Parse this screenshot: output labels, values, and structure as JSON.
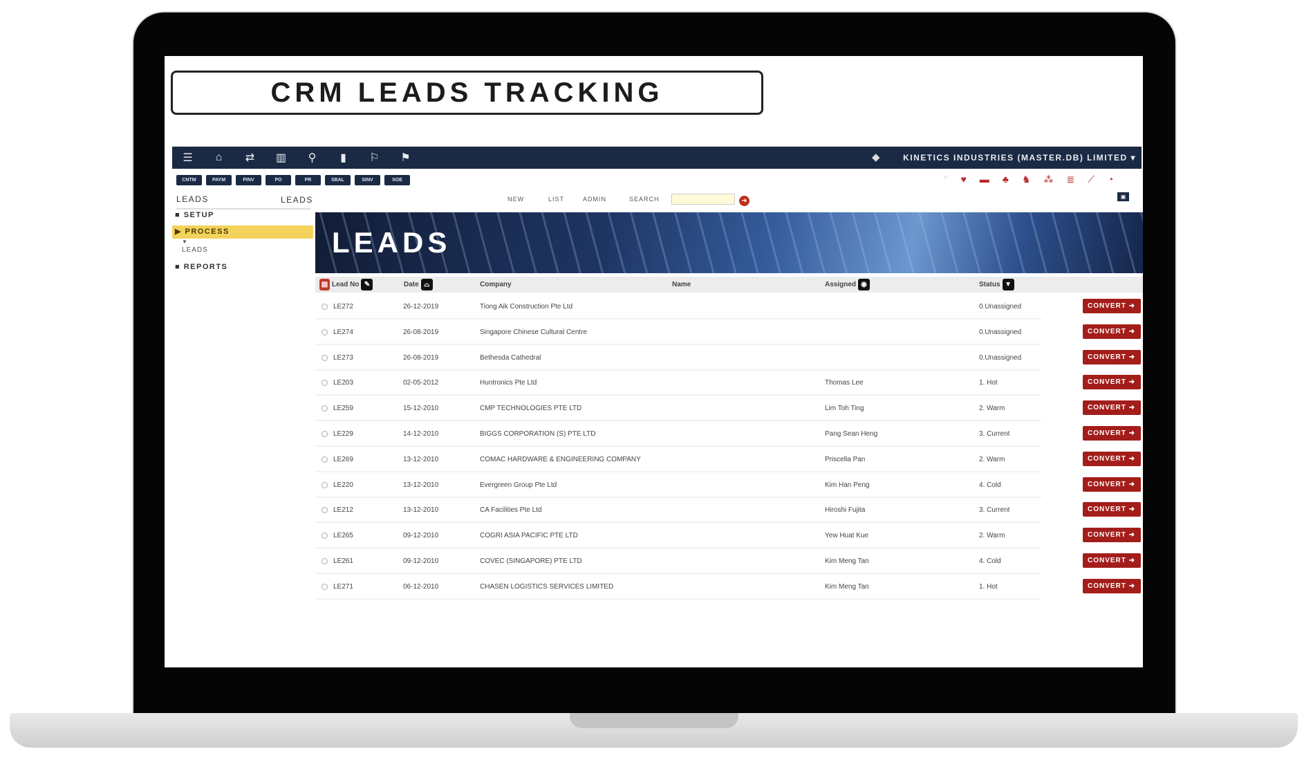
{
  "title": "CRM LEADS TRACKING",
  "navbar": {
    "icons": [
      "menu-icon",
      "home-icon",
      "transfer-icon",
      "map-icon",
      "link-icon",
      "bookmark-icon",
      "flag-outline-icon",
      "flag-icon"
    ],
    "company": "KINETICS INDUSTRIES (MASTER.DB) LIMITED ▾"
  },
  "modules": [
    "CNTM",
    "PAYM",
    "PINV",
    "PO",
    "PR",
    "SBAL",
    "SINV",
    "SOE"
  ],
  "sidebar": {
    "heading": "LEADS",
    "items": [
      {
        "label": "SETUP"
      },
      {
        "label": "PROCESS"
      },
      {
        "label": "REPORTS"
      }
    ],
    "sub": "LEADS"
  },
  "content": {
    "heading": "LEADS",
    "nav": [
      "NEW",
      "LIST",
      "ADMIN",
      "SEARCH"
    ],
    "search_value": "",
    "banner": "LEADS"
  },
  "table": {
    "headers": {
      "lead": "Lead No",
      "date": "Date",
      "company": "Company",
      "name": "Name",
      "assigned": "Assigned",
      "status": "Status"
    },
    "convert_label": "CONVERT ➜",
    "rows": [
      {
        "lead": "LE272",
        "date": "26-12-2019",
        "company": "Tiong Aik Construction Pte Ltd",
        "name": "",
        "assigned": "",
        "status": "0.Unassigned"
      },
      {
        "lead": "LE274",
        "date": "26-08-2019",
        "company": "Singapore Chinese Cultural Centre",
        "name": "",
        "assigned": "",
        "status": "0.Unassigned"
      },
      {
        "lead": "LE273",
        "date": "26-08-2019",
        "company": "Bethesda Cathedral",
        "name": "",
        "assigned": "",
        "status": "0.Unassigned"
      },
      {
        "lead": "LE203",
        "date": "02-05-2012",
        "company": "Huntronics Pte Ltd",
        "name": "",
        "assigned": "Thomas Lee",
        "status": "1. Hot"
      },
      {
        "lead": "LE259",
        "date": "15-12-2010",
        "company": "CMP TECHNOLOGIES PTE LTD",
        "name": "",
        "assigned": "Lim Toh Ting",
        "status": "2. Warm"
      },
      {
        "lead": "LE229",
        "date": "14-12-2010",
        "company": "BIGGS CORPORATION (S) PTE LTD",
        "name": "",
        "assigned": "Pang Sean Heng",
        "status": "3. Current"
      },
      {
        "lead": "LE269",
        "date": "13-12-2010",
        "company": "COMAC HARDWARE & ENGINEERING COMPANY",
        "name": "",
        "assigned": "Priscella Pan",
        "status": "2. Warm"
      },
      {
        "lead": "LE220",
        "date": "13-12-2010",
        "company": "Evergreen Group Pte Ltd",
        "name": "",
        "assigned": "Kim Han Peng",
        "status": "4. Cold"
      },
      {
        "lead": "LE212",
        "date": "13-12-2010",
        "company": "CA Facilities Pte Ltd",
        "name": "",
        "assigned": "Hiroshi Fujita",
        "status": "3. Current"
      },
      {
        "lead": "LE265",
        "date": "09-12-2010",
        "company": "COGRI ASIA PACIFIC PTE LTD",
        "name": "",
        "assigned": "Yew Huat Kue",
        "status": "2. Warm"
      },
      {
        "lead": "LE261",
        "date": "09-12-2010",
        "company": "COVEC (SINGAPORE) PTE LTD",
        "name": "",
        "assigned": "Kim Meng Tan",
        "status": "4. Cold"
      },
      {
        "lead": "LE271",
        "date": "06-12-2010",
        "company": "CHASEN LOGISTICS SERVICES LIMITED",
        "name": "",
        "assigned": "Kim Meng Tan",
        "status": "1. Hot"
      }
    ]
  },
  "colors": {
    "navbar": "#1b2a44",
    "accent": "#a31d1a",
    "highlight": "#f3d35c"
  }
}
